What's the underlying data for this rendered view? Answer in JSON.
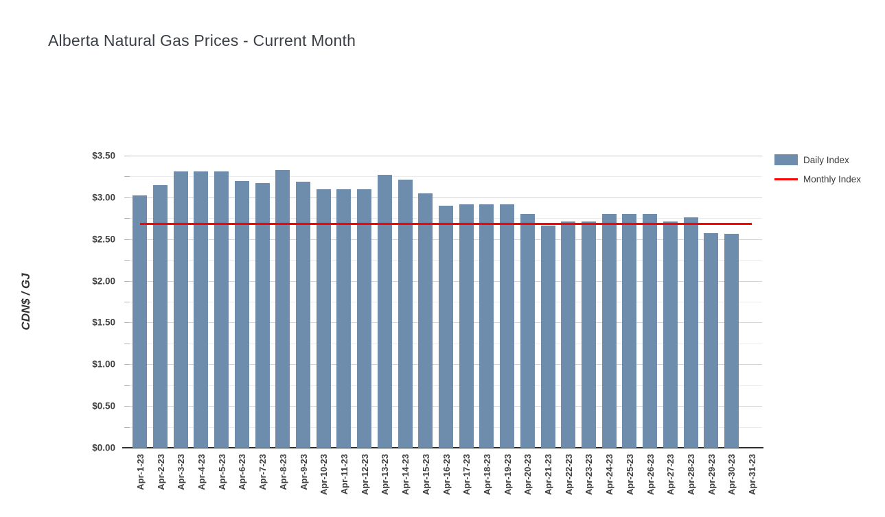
{
  "header": {
    "title": "Alberta Natural Gas Prices - Current Month"
  },
  "legend": {
    "position": "right",
    "items": [
      {
        "label": "Daily Index",
        "swatch": "bar-swatch",
        "color": "#6e8cac"
      },
      {
        "label": "Monthly Index",
        "swatch": "line-swatch",
        "color": "#ff0000"
      }
    ]
  },
  "chart_data": {
    "type": "bar",
    "title": "Alberta Natural Gas Prices - Current Month",
    "xlabel": "",
    "ylabel": "CDN$ / GJ",
    "ylim": [
      0,
      3.5
    ],
    "ytick_step": 0.5,
    "minor_gridline_step": 0.25,
    "grid": true,
    "legend_position": "right",
    "y_tick_labels": [
      "$0.00",
      "$0.50",
      "$1.00",
      "$1.50",
      "$2.00",
      "$2.50",
      "$3.00",
      "$3.50"
    ],
    "categories": [
      "Apr-1-23",
      "Apr-2-23",
      "Apr-3-23",
      "Apr-4-23",
      "Apr-5-23",
      "Apr-6-23",
      "Apr-7-23",
      "Apr-8-23",
      "Apr-9-23",
      "Apr-10-23",
      "Apr-11-23",
      "Apr-12-23",
      "Apr-13-23",
      "Apr-14-23",
      "Apr-15-23",
      "Apr-16-23",
      "Apr-17-23",
      "Apr-18-23",
      "Apr-19-23",
      "Apr-20-23",
      "Apr-21-23",
      "Apr-22-23",
      "Apr-23-23",
      "Apr-24-23",
      "Apr-25-23",
      "Apr-26-23",
      "Apr-27-23",
      "Apr-28-23",
      "Apr-29-23",
      "Apr-30-23",
      "Apr-31-23"
    ],
    "series": [
      {
        "name": "Daily Index",
        "type": "bar",
        "color": "#6e8cac",
        "values": [
          3.02,
          3.15,
          3.31,
          3.31,
          3.31,
          3.2,
          3.17,
          3.33,
          3.19,
          3.1,
          3.1,
          3.1,
          3.27,
          3.21,
          3.05,
          2.9,
          2.92,
          2.92,
          2.92,
          2.8,
          2.66,
          2.71,
          2.71,
          2.8,
          2.8,
          2.8,
          2.71,
          2.76,
          2.57,
          2.56,
          null
        ]
      },
      {
        "name": "Monthly Index",
        "type": "line",
        "color": "#ff0000",
        "value": 2.68
      }
    ]
  }
}
